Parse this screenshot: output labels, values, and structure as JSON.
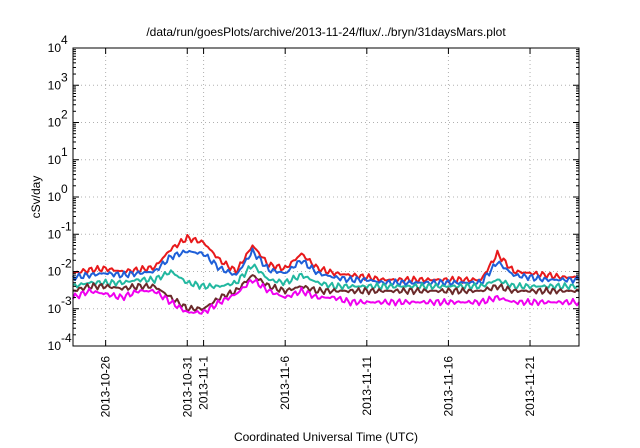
{
  "chart_data": {
    "type": "line",
    "title": "/data/run/goesPlots/archive/2013-11-24/flux/../bryn/31daysMars.plot",
    "xlabel": "Coordinated Universal Time (UTC)",
    "ylabel": "cSv/day",
    "yscale": "log",
    "ylim": [
      "1e-4",
      "1e4"
    ],
    "xlim": [
      "2013-10-24",
      "2013-11-24"
    ],
    "grid": true,
    "x_ticks": [
      {
        "date": "2013-10-26",
        "label": "2013-10-26"
      },
      {
        "date": "2013-10-31",
        "label": "2013-10-31"
      },
      {
        "date": "2013-11-01",
        "label": "2013-11-1"
      },
      {
        "date": "2013-11-06",
        "label": "2013-11-6"
      },
      {
        "date": "2013-11-11",
        "label": "2013-11-11"
      },
      {
        "date": "2013-11-16",
        "label": "2013-11-16"
      },
      {
        "date": "2013-11-21",
        "label": "2013-11-21"
      }
    ],
    "y_ticks": [
      {
        "exp": "-4",
        "label": "10",
        "value": 0.0001
      },
      {
        "exp": "-3",
        "label": "10",
        "value": 0.001
      },
      {
        "exp": "-2",
        "label": "10",
        "value": 0.01
      },
      {
        "exp": "-1",
        "label": "10",
        "value": 0.1
      },
      {
        "exp": "0",
        "label": "10",
        "value": 1
      },
      {
        "exp": "1",
        "label": "10",
        "value": 10
      },
      {
        "exp": "2",
        "label": "10",
        "value": 100
      },
      {
        "exp": "3",
        "label": "10",
        "value": 1000
      },
      {
        "exp": "4",
        "label": "10",
        "value": 10000
      }
    ],
    "x_dates": [
      "2013-10-24",
      "2013-10-25",
      "2013-10-26",
      "2013-10-27",
      "2013-10-28",
      "2013-10-29",
      "2013-10-30",
      "2013-10-31",
      "2013-11-01",
      "2013-11-02",
      "2013-11-03",
      "2013-11-04",
      "2013-11-05",
      "2013-11-06",
      "2013-11-07",
      "2013-11-08",
      "2013-11-09",
      "2013-11-10",
      "2013-11-11",
      "2013-11-12",
      "2013-11-13",
      "2013-11-14",
      "2013-11-15",
      "2013-11-16",
      "2013-11-17",
      "2013-11-18",
      "2013-11-19",
      "2013-11-20",
      "2013-11-21",
      "2013-11-22",
      "2013-11-23",
      "2013-11-24"
    ],
    "series": [
      {
        "color": "#e8191b",
        "values": [
          0.009,
          0.011,
          0.012,
          0.01,
          0.011,
          0.013,
          0.04,
          0.08,
          0.06,
          0.02,
          0.01,
          0.05,
          0.015,
          0.012,
          0.03,
          0.012,
          0.009,
          0.008,
          0.007,
          0.006,
          0.006,
          0.006,
          0.006,
          0.006,
          0.006,
          0.006,
          0.03,
          0.01,
          0.009,
          0.008,
          0.007,
          0.007
        ]
      },
      {
        "color": "#1e5fd8",
        "values": [
          0.007,
          0.008,
          0.009,
          0.008,
          0.009,
          0.01,
          0.025,
          0.035,
          0.03,
          0.012,
          0.008,
          0.035,
          0.011,
          0.009,
          0.02,
          0.009,
          0.007,
          0.006,
          0.006,
          0.005,
          0.005,
          0.005,
          0.005,
          0.005,
          0.005,
          0.005,
          0.018,
          0.008,
          0.007,
          0.006,
          0.006,
          0.006
        ]
      },
      {
        "color": "#22b8a0",
        "values": [
          0.004,
          0.005,
          0.005,
          0.005,
          0.006,
          0.006,
          0.01,
          0.005,
          0.004,
          0.004,
          0.005,
          0.015,
          0.006,
          0.005,
          0.008,
          0.005,
          0.004,
          0.004,
          0.004,
          0.004,
          0.004,
          0.004,
          0.004,
          0.004,
          0.004,
          0.004,
          0.006,
          0.004,
          0.004,
          0.004,
          0.004,
          0.004
        ]
      },
      {
        "color": "#6a2a2a",
        "values": [
          0.003,
          0.004,
          0.004,
          0.0035,
          0.004,
          0.004,
          0.002,
          0.001,
          0.001,
          0.002,
          0.003,
          0.008,
          0.004,
          0.003,
          0.004,
          0.003,
          0.003,
          0.003,
          0.003,
          0.003,
          0.003,
          0.003,
          0.003,
          0.003,
          0.003,
          0.003,
          0.004,
          0.003,
          0.003,
          0.003,
          0.003,
          0.003
        ]
      },
      {
        "color": "#f000f0",
        "values": [
          0.002,
          0.003,
          0.0025,
          0.002,
          0.003,
          0.003,
          0.0015,
          0.0008,
          0.0008,
          0.0015,
          0.0025,
          0.006,
          0.003,
          0.002,
          0.003,
          0.002,
          0.002,
          0.0015,
          0.0015,
          0.0015,
          0.0015,
          0.0015,
          0.0015,
          0.0015,
          0.0015,
          0.0015,
          0.002,
          0.0015,
          0.0015,
          0.0015,
          0.0015,
          0.0015
        ]
      }
    ]
  }
}
